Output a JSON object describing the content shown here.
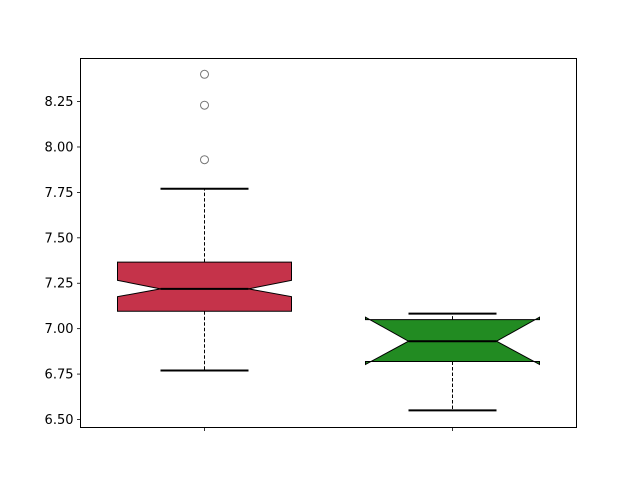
{
  "chart_data": {
    "type": "box",
    "title": "",
    "xlabel": "",
    "ylabel": "",
    "xlim": [
      0.5,
      2.5
    ],
    "ylim": [
      6.456,
      8.487
    ],
    "yticks": [
      6.5,
      6.75,
      7.0,
      7.25,
      7.5,
      7.75,
      8.0,
      8.25
    ],
    "ytick_labels": [
      "6.50",
      "6.75",
      "7.00",
      "7.25",
      "7.50",
      "7.75",
      "8.00",
      "8.25"
    ],
    "xticks": [
      1,
      2
    ],
    "xtick_labels": [
      "",
      ""
    ],
    "grid": false,
    "notched": true,
    "boxes": [
      {
        "position": 1,
        "color": "#c5334a",
        "q1": 7.096,
        "median": 7.219,
        "q3": 7.366,
        "notch_low": 7.176,
        "notch_high": 7.266,
        "whisker_low": 6.77,
        "whisker_high": 7.77,
        "outliers": [
          7.93,
          8.23,
          8.4
        ]
      },
      {
        "position": 2,
        "color": "#228b22",
        "q1": 6.819,
        "median": 6.931,
        "q3": 7.05,
        "notch_low": 6.803,
        "notch_high": 7.063,
        "whisker_low": 6.55,
        "whisker_high": 7.083,
        "outliers": []
      }
    ]
  }
}
